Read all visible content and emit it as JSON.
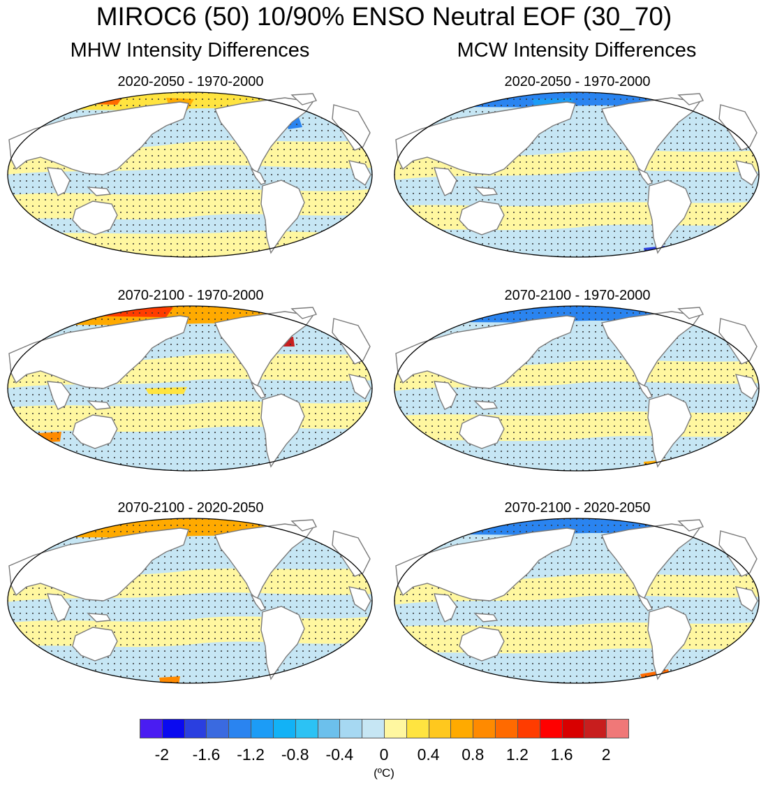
{
  "title": "MIROC6 (50) 10/90% ENSO Neutral EOF (30_70)",
  "columns": [
    {
      "title": "MHW Intensity Differences"
    },
    {
      "title": "MCW Intensity Differences"
    }
  ],
  "panels": [
    {
      "title": "2020-2050 - 1970-2000",
      "variable": "MHW"
    },
    {
      "title": "2020-2050 - 1970-2000",
      "variable": "MCW"
    },
    {
      "title": "2070-2100 - 1970-2000",
      "variable": "MHW"
    },
    {
      "title": "2070-2100 - 1970-2000",
      "variable": "MCW"
    },
    {
      "title": "2070-2100 - 2020-2050",
      "variable": "MHW"
    },
    {
      "title": "2070-2100 - 2020-2050",
      "variable": "MCW"
    }
  ],
  "colorbar": {
    "colors": [
      "#4a1cf2",
      "#0a0af0",
      "#2a3fe0",
      "#3a6ae0",
      "#2a84f0",
      "#1c9cf6",
      "#12b2f6",
      "#2cc2f4",
      "#6cc0ec",
      "#a6d8f2",
      "#c6e6f4",
      "#fff7a0",
      "#ffe440",
      "#ffc81e",
      "#ffaa00",
      "#ff8a00",
      "#ff6a00",
      "#ff3c00",
      "#ff0000",
      "#d80000",
      "#c81e1e",
      "#f07878"
    ],
    "labels": [
      "-2",
      "-1.6",
      "-1.2",
      "-0.8",
      "-0.4",
      "0",
      "0.4",
      "0.8",
      "1.2",
      "1.6",
      "2"
    ],
    "units": "(ºC)"
  },
  "chart_data": {
    "type": "heatmap",
    "title": "MIROC6 (50) 10/90% ENSO Neutral EOF (30_70)",
    "levels": [
      -2,
      -1.8,
      -1.6,
      -1.4,
      -1.2,
      -1,
      -0.8,
      -0.6,
      -0.4,
      -0.2,
      0,
      0.2,
      0.4,
      0.6,
      0.8,
      1,
      1.2,
      1.4,
      1.6,
      1.8,
      2
    ],
    "units": "ºC",
    "panels": [
      "MHW 2020-2050 - 1970-2000",
      "MCW 2020-2050 - 1970-2000",
      "MHW 2070-2100 - 1970-2000",
      "MCW 2070-2100 - 1970-2000",
      "MHW 2070-2100 - 2020-2050",
      "MCW 2070-2100 - 2020-2050"
    ]
  }
}
